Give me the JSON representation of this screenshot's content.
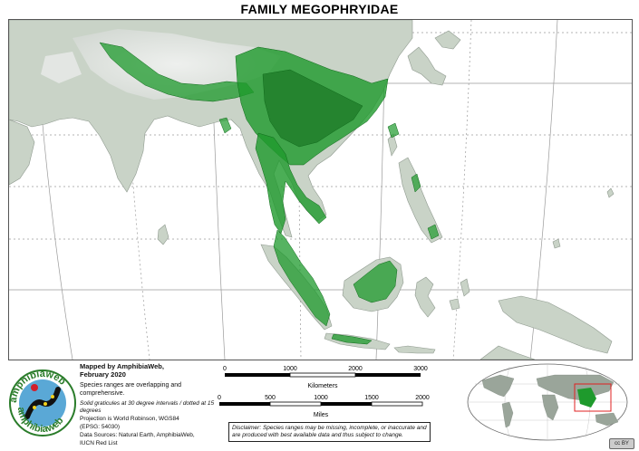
{
  "title": "FAMILY MEGOPHRYIDAE",
  "logo": {
    "text": "amphibiaweb",
    "icon": "salamander-logo-icon"
  },
  "info": {
    "mapped_by": "Mapped by AmphibiaWeb,",
    "mapped_date": "February 2020",
    "ranges_note": "Species ranges are overlapping and comprehensive.",
    "graticule_note": "Solid graticules at 30 degree intervals / dotted at 15 degrees",
    "projection_1": "Projection is World Robinson, WGS84",
    "projection_2": "(EPSG: 54030)",
    "sources_1": "Data Sources: Natural Earth, AmphibiaWeb,",
    "sources_2": "IUCN Red List"
  },
  "scale_km": {
    "ticks": [
      "0",
      "1000",
      "2000",
      "3000"
    ],
    "unit": "Kilometers"
  },
  "scale_mi": {
    "ticks": [
      "0",
      "500",
      "1000",
      "1500",
      "2000"
    ],
    "unit": "Miles"
  },
  "disclaimer": "Disclaimer: Species ranges may be missing, incomplete, or inaccurate and are produced with best available data and thus subject to change.",
  "license_badge": "cc BY",
  "colors": {
    "range_fill": "#1e9a2c",
    "range_dark": "#0f6a1a",
    "land": "#c9d3c7",
    "relief": "#e2e6e2",
    "water": "#ffffff",
    "locator_box": "#e02020"
  }
}
